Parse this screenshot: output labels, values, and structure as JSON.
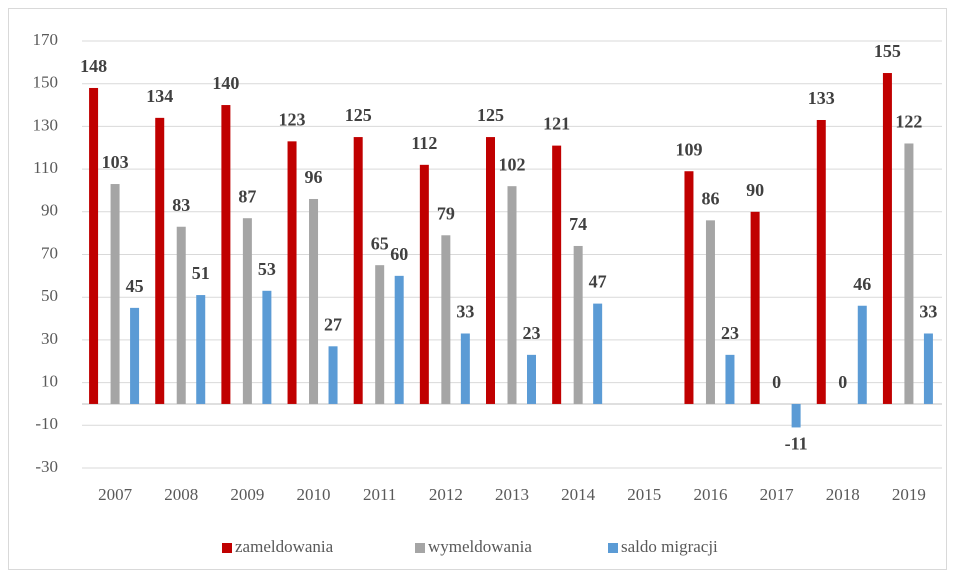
{
  "chart_data": {
    "type": "bar",
    "categories": [
      "2007",
      "2008",
      "2009",
      "2010",
      "2011",
      "2012",
      "2013",
      "2014",
      "2015",
      "2016",
      "2017",
      "2018",
      "2019"
    ],
    "series": [
      {
        "name": "zameldowania",
        "color": "#c00000",
        "values": [
          148,
          134,
          140,
          123,
          125,
          112,
          125,
          121,
          null,
          109,
          90,
          133,
          155
        ]
      },
      {
        "name": "wymeldowania",
        "color": "#a5a5a5",
        "values": [
          103,
          83,
          87,
          96,
          65,
          79,
          102,
          74,
          null,
          86,
          0,
          0,
          122
        ]
      },
      {
        "name": "saldo migracji",
        "color": "#5b9bd5",
        "values": [
          45,
          51,
          53,
          27,
          60,
          33,
          23,
          47,
          null,
          23,
          -11,
          46,
          33
        ]
      }
    ],
    "ylim": [
      -30,
      170
    ],
    "yticks": [
      -30,
      -10,
      10,
      30,
      50,
      70,
      90,
      110,
      130,
      150,
      170
    ],
    "grid": true,
    "legend": "bottom"
  }
}
